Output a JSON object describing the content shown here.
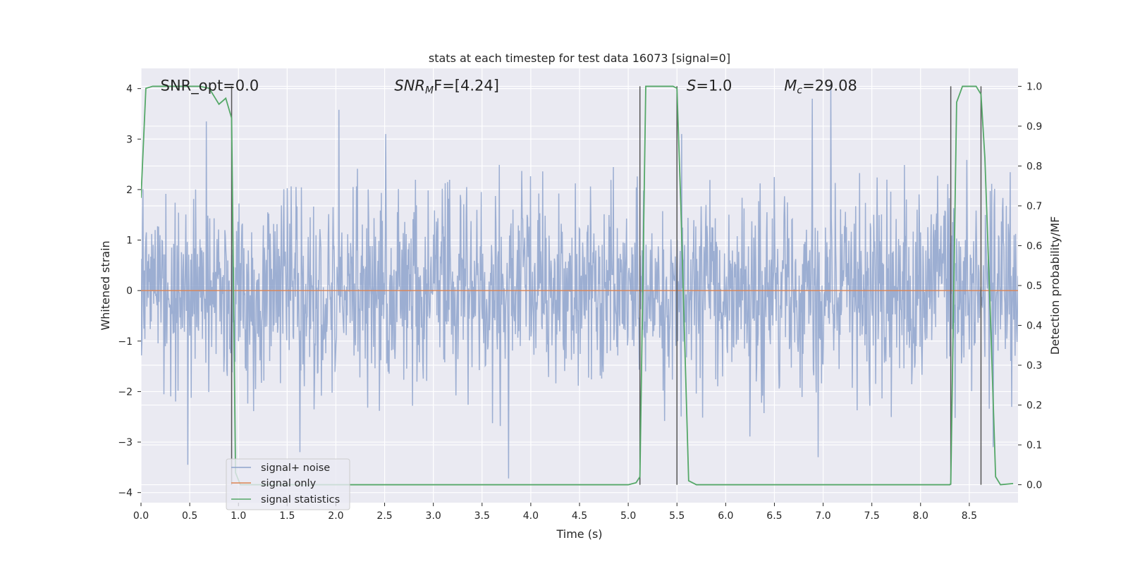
{
  "chart_data": {
    "type": "line",
    "title": "stats at each timestep for test data 16073 [signal=0]",
    "xlabel": "Time (s)",
    "ylabel": "Whitened strain",
    "y2label": "Detection probability/MF",
    "xlim": [
      0.0,
      9.0
    ],
    "ylim": [
      -4.2,
      4.4
    ],
    "y2lim": [
      -0.045,
      1.045
    ],
    "x_ticks": [
      0.0,
      0.5,
      1.0,
      1.5,
      2.0,
      2.5,
      3.0,
      3.5,
      4.0,
      4.5,
      5.0,
      5.5,
      6.0,
      6.5,
      7.0,
      7.5,
      8.0,
      8.5
    ],
    "x_tick_labels": [
      "0.0",
      "0.5",
      "1.0",
      "1.5",
      "2.0",
      "2.5",
      "3.0",
      "3.5",
      "4.0",
      "4.5",
      "5.0",
      "5.5",
      "6.0",
      "6.5",
      "7.0",
      "7.5",
      "8.0",
      "8.5"
    ],
    "y_ticks": [
      4,
      3,
      2,
      1,
      0,
      -1,
      -2,
      -3,
      -4
    ],
    "y_tick_labels": [
      "4",
      "3",
      "2",
      "1",
      "0",
      "−1",
      "−2",
      "−3",
      "−4"
    ],
    "y2_ticks": [
      1.0,
      0.9,
      0.8,
      0.7,
      0.6,
      0.5,
      0.4,
      0.3,
      0.2,
      0.1,
      0.0
    ],
    "y2_tick_labels": [
      "1.0",
      "0.9",
      "0.8",
      "0.7",
      "0.6",
      "0.5",
      "0.4",
      "0.3",
      "0.2",
      "0.1",
      "0.0"
    ],
    "grid": true,
    "legend_position": "lower-left",
    "annotations": [
      {
        "text": "SNR_opt=0.0",
        "x": 0.2,
        "y": 4.0
      },
      {
        "base": "SNR",
        "sub": "M",
        "rest": "F=[4.24]",
        "x": 2.6,
        "y": 4.0
      },
      {
        "base": "S",
        "sub": "",
        "rest": "=1.0",
        "x": 5.6,
        "y": 4.0
      },
      {
        "base": "M",
        "sub": "c",
        "rest": "=29.08",
        "x": 6.6,
        "y": 4.0
      }
    ],
    "vertical_markers": [
      {
        "x": 0.93,
        "y2_from": 0.0,
        "y2_to": 1.0
      },
      {
        "x": 5.12,
        "y2_from": 0.0,
        "y2_to": 1.0
      },
      {
        "x": 5.5,
        "y2_from": 0.0,
        "y2_to": 1.0
      },
      {
        "x": 8.31,
        "y2_from": 0.0,
        "y2_to": 1.0
      },
      {
        "x": 8.62,
        "y2_from": 0.0,
        "y2_to": 1.0
      }
    ],
    "noise_series": {
      "name": "signal+ noise",
      "color": "#8ea3cc",
      "t_start": 0.0,
      "t_end": 9.0,
      "n_samples": 1800,
      "seed": 16073,
      "sigma": 0.95,
      "notable_peaks": [
        {
          "x": 2.03,
          "y": 3.58
        },
        {
          "x": 3.77,
          "y": -3.72
        },
        {
          "x": 7.08,
          "y": 4.05
        },
        {
          "x": 6.89,
          "y": 3.8
        },
        {
          "x": 0.67,
          "y": 3.35
        },
        {
          "x": 1.63,
          "y": -3.2
        },
        {
          "x": 0.48,
          "y": -3.45
        },
        {
          "x": 6.95,
          "y": -3.3
        }
      ]
    },
    "signal_series": {
      "name": "signal only",
      "color": "#dd8452",
      "x": [
        0.0,
        9.0
      ],
      "y": [
        0.0,
        0.0
      ]
    },
    "stat_series": {
      "name": "signal statistics",
      "color": "#55a868",
      "x": [
        0.0,
        0.05,
        0.12,
        0.2,
        0.3,
        0.4,
        0.5,
        0.6,
        0.7,
        0.75,
        0.8,
        0.87,
        0.93,
        0.97,
        1.02,
        1.1,
        1.5,
        2.0,
        2.5,
        3.0,
        3.5,
        4.0,
        4.5,
        5.0,
        5.08,
        5.12,
        5.18,
        5.3,
        5.4,
        5.46,
        5.5,
        5.54,
        5.62,
        5.7,
        6.0,
        6.5,
        7.0,
        7.5,
        8.0,
        8.3,
        8.31,
        8.37,
        8.43,
        8.5,
        8.57,
        8.62,
        8.66,
        8.72,
        8.77,
        8.82,
        8.95
      ],
      "y": [
        0.72,
        0.995,
        1.0,
        1.0,
        1.0,
        1.0,
        1.0,
        1.0,
        0.995,
        0.975,
        0.955,
        0.97,
        0.92,
        0.03,
        0.0,
        0.0,
        0.0,
        0.0,
        0.0,
        0.0,
        0.0,
        0.0,
        0.0,
        0.0,
        0.005,
        0.02,
        1.0,
        1.0,
        1.0,
        1.0,
        0.995,
        0.7,
        0.01,
        0.0,
        0.0,
        0.0,
        0.0,
        0.0,
        0.0,
        0.0,
        0.003,
        0.96,
        1.0,
        1.0,
        1.0,
        0.98,
        0.82,
        0.4,
        0.02,
        0.0,
        0.003
      ]
    }
  }
}
